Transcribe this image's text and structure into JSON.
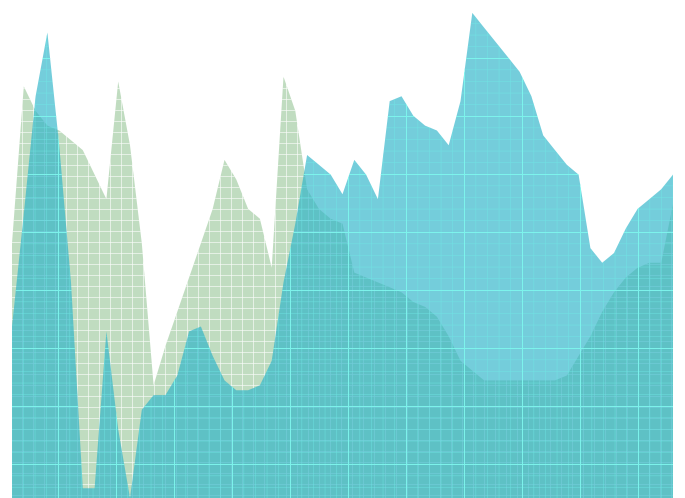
{
  "chart_data": {
    "type": "area",
    "title": "",
    "xlabel": "",
    "ylabel": "",
    "grid": true,
    "legend": "none",
    "ylim": [
      0,
      100
    ],
    "x": [
      0,
      1,
      2,
      3,
      4,
      5,
      6,
      7,
      8,
      9,
      10,
      11,
      12,
      13,
      14,
      15,
      16,
      17,
      18,
      19,
      20,
      21,
      22,
      23,
      24,
      25,
      26,
      27,
      28,
      29,
      30,
      31,
      32,
      33,
      34,
      35,
      36,
      37,
      38,
      39,
      40,
      41,
      42,
      43,
      44,
      45,
      46,
      47,
      48,
      49,
      50,
      51,
      52,
      53,
      54,
      55,
      56
    ],
    "series": [
      {
        "color": "#8dbf8c",
        "values": [
          52,
          84,
          79,
          76,
          75,
          73,
          71,
          66,
          61,
          85,
          72,
          52,
          23,
          31,
          38,
          45,
          52,
          59,
          69,
          65,
          59,
          57,
          47,
          86,
          79,
          63,
          59,
          57,
          56,
          46,
          45,
          44,
          43,
          42,
          40,
          39,
          37,
          33,
          28,
          26,
          24,
          24,
          24,
          24,
          24,
          24,
          24,
          25,
          29,
          33,
          38,
          42,
          45,
          47,
          48,
          48,
          60
        ]
      },
      {
        "color": "#29b2c8",
        "values": [
          35,
          58,
          82,
          95,
          72,
          44,
          2,
          2,
          34,
          14,
          0,
          18,
          21,
          21,
          25,
          34,
          35,
          29,
          24,
          22,
          22,
          23,
          28,
          44,
          56,
          70,
          68,
          66,
          62,
          69,
          66,
          61,
          81,
          82,
          78,
          76,
          75,
          72,
          81,
          99,
          96,
          93,
          90,
          87,
          82,
          74,
          71,
          68,
          66,
          51,
          48,
          50,
          55,
          59,
          61,
          63,
          66
        ]
      }
    ]
  }
}
